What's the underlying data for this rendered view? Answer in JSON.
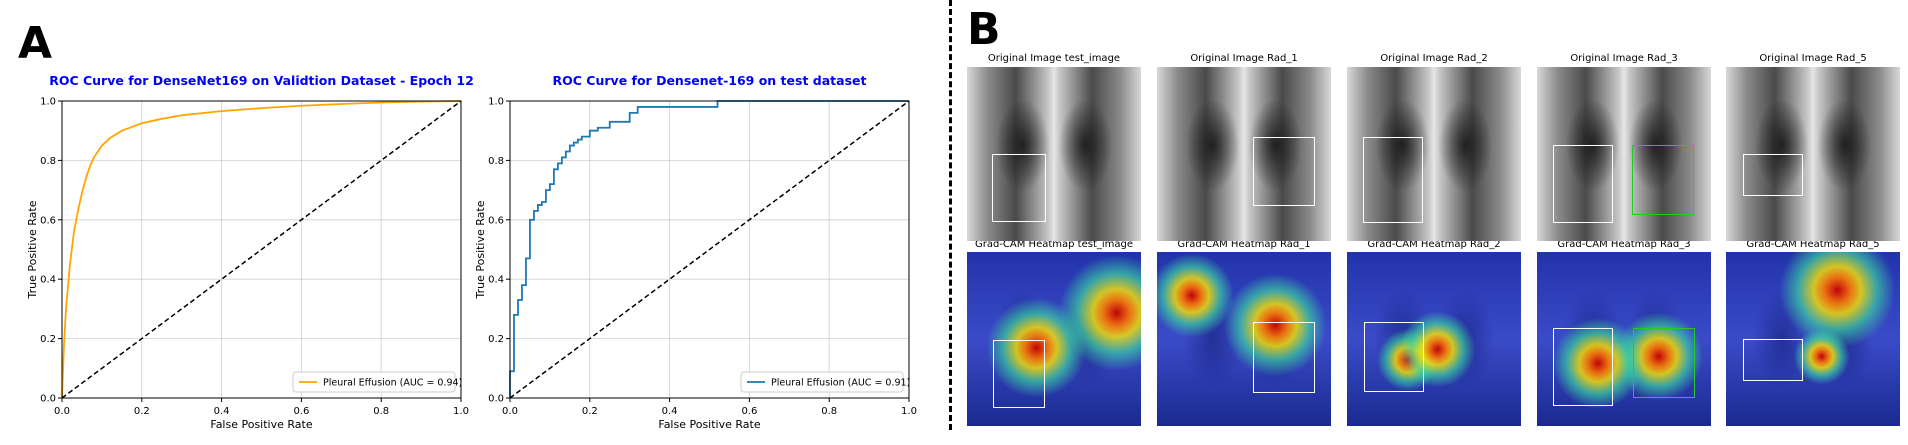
{
  "panels": {
    "a": "A",
    "b": "B"
  },
  "chart_data": [
    {
      "type": "line",
      "title": "ROC Curve for DenseNet169 on Validtion Dataset - Epoch 12",
      "title_color": "#0000ff",
      "xlabel": "False Positive Rate",
      "ylabel": "True Positive Rate",
      "xlim": [
        0.0,
        1.0
      ],
      "ylim": [
        0.0,
        1.0
      ],
      "xticks": [
        "0.0",
        "0.2",
        "0.4",
        "0.6",
        "0.8",
        "1.0"
      ],
      "yticks": [
        "0.0",
        "0.2",
        "0.4",
        "0.6",
        "0.8",
        "1.0"
      ],
      "grid": true,
      "legend_position": "lower right",
      "series": [
        {
          "name": "Pleural Effusion (AUC = 0.94)",
          "color": "#ffa500",
          "x": [
            0.0,
            0.005,
            0.01,
            0.02,
            0.03,
            0.04,
            0.05,
            0.06,
            0.07,
            0.08,
            0.1,
            0.12,
            0.15,
            0.2,
            0.25,
            0.3,
            0.4,
            0.5,
            0.6,
            0.7,
            0.8,
            0.9,
            1.0
          ],
          "y": [
            0.0,
            0.18,
            0.3,
            0.45,
            0.56,
            0.63,
            0.69,
            0.74,
            0.78,
            0.81,
            0.85,
            0.875,
            0.9,
            0.925,
            0.94,
            0.952,
            0.966,
            0.976,
            0.984,
            0.99,
            0.995,
            0.998,
            1.0
          ]
        },
        {
          "name": "",
          "color": "#000000",
          "style": "dashed",
          "x": [
            0.0,
            1.0
          ],
          "y": [
            0.0,
            1.0
          ]
        }
      ]
    },
    {
      "type": "line",
      "title": "ROC Curve for Densenet-169 on test dataset",
      "title_color": "#0000ff",
      "xlabel": "False Positive Rate",
      "ylabel": "True Positive Rate",
      "xlim": [
        0.0,
        1.0
      ],
      "ylim": [
        0.0,
        1.0
      ],
      "xticks": [
        "0.0",
        "0.2",
        "0.4",
        "0.6",
        "0.8",
        "1.0"
      ],
      "yticks": [
        "0.0",
        "0.2",
        "0.4",
        "0.6",
        "0.8",
        "1.0"
      ],
      "grid": true,
      "legend_position": "lower right",
      "series": [
        {
          "name": "Pleural Effusion (AUC = 0.91)",
          "color": "#1f77b4",
          "step": true,
          "x": [
            0.0,
            0.0,
            0.01,
            0.01,
            0.02,
            0.02,
            0.03,
            0.03,
            0.04,
            0.04,
            0.05,
            0.05,
            0.06,
            0.06,
            0.07,
            0.07,
            0.08,
            0.08,
            0.09,
            0.09,
            0.1,
            0.1,
            0.11,
            0.11,
            0.12,
            0.12,
            0.13,
            0.13,
            0.14,
            0.14,
            0.15,
            0.15,
            0.16,
            0.16,
            0.17,
            0.17,
            0.18,
            0.18,
            0.2,
            0.2,
            0.22,
            0.22,
            0.25,
            0.25,
            0.3,
            0.3,
            0.32,
            0.32,
            0.52,
            0.52,
            1.0
          ],
          "y": [
            0.0,
            0.09,
            0.09,
            0.28,
            0.28,
            0.33,
            0.33,
            0.38,
            0.38,
            0.47,
            0.47,
            0.6,
            0.6,
            0.63,
            0.63,
            0.65,
            0.65,
            0.66,
            0.66,
            0.7,
            0.7,
            0.72,
            0.72,
            0.77,
            0.77,
            0.79,
            0.79,
            0.81,
            0.81,
            0.83,
            0.83,
            0.85,
            0.85,
            0.86,
            0.86,
            0.87,
            0.87,
            0.88,
            0.88,
            0.9,
            0.9,
            0.91,
            0.91,
            0.93,
            0.93,
            0.96,
            0.96,
            0.98,
            0.98,
            1.0,
            1.0
          ]
        },
        {
          "name": "",
          "color": "#000000",
          "style": "dashed",
          "x": [
            0.0,
            1.0
          ],
          "y": [
            0.0,
            1.0
          ]
        }
      ]
    }
  ],
  "xray_grid": {
    "columns": [
      {
        "top_title": "Original Image test_image",
        "bottom_title": "Grad-CAM Heatmap test_image"
      },
      {
        "top_title": "Original Image Rad_1",
        "bottom_title": "Grad-CAM Heatmap Rad_1"
      },
      {
        "top_title": "Original Image Rad_2",
        "bottom_title": "Grad-CAM Heatmap Rad_2"
      },
      {
        "top_title": "Original Image Rad_3",
        "bottom_title": "Grad-CAM Heatmap Rad_3"
      },
      {
        "top_title": "Original Image Rad_5",
        "bottom_title": "Grad-CAM Heatmap Rad_5"
      }
    ],
    "box_colors": {
      "annotation": "#ffffff",
      "secondary_annotation": "#22cc22"
    }
  }
}
